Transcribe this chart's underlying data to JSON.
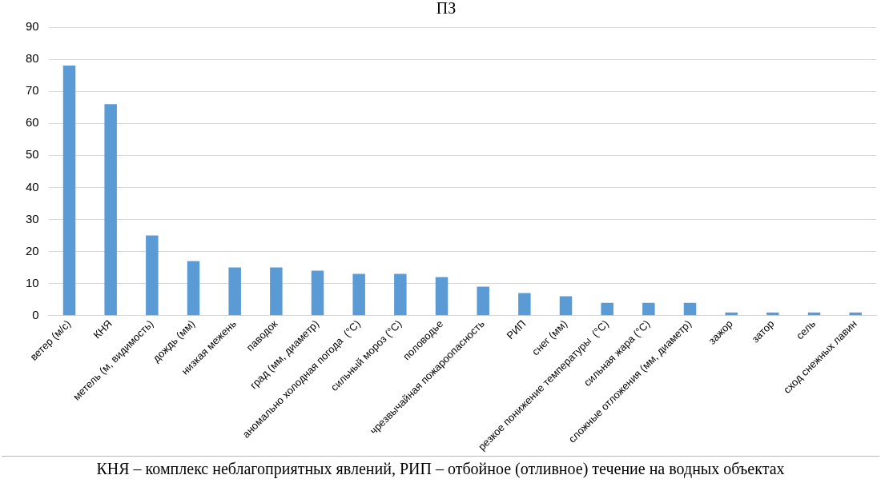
{
  "chart_data": {
    "type": "bar",
    "title": "ПЗ",
    "categories": [
      "ветер (м/с)",
      "КНЯ",
      "метель (м, видимость)",
      "дождь (мм)",
      "низкая межень",
      "паводок",
      "град (мм, диаметр)",
      "аномально холодная погода  (°C)",
      "сильный мороз (°C)",
      "половодье",
      "чрезвычайная пожароопасность",
      "РИП",
      "снег (мм)",
      "резкое понижение температуры  (°C)",
      "сильная жара (°C)",
      "сложные отложения (мм, диаметр)",
      "зажор",
      "затор",
      "сель",
      "сход снежных лавин"
    ],
    "values": [
      78,
      66,
      25,
      17,
      15,
      15,
      14,
      13,
      13,
      12,
      9,
      7,
      6,
      4,
      4,
      4,
      1,
      1,
      1,
      1
    ],
    "color": "#5b9bd5",
    "ylim": [
      0,
      90
    ],
    "yticks": [
      0,
      10,
      20,
      30,
      40,
      50,
      60,
      70,
      80,
      90
    ],
    "grid": "y",
    "legend": false,
    "annotations": [
      "КНЯ – комплекс неблагоприятных явлений, РИП – отбойное (отливное) течение на водных объектах"
    ]
  }
}
